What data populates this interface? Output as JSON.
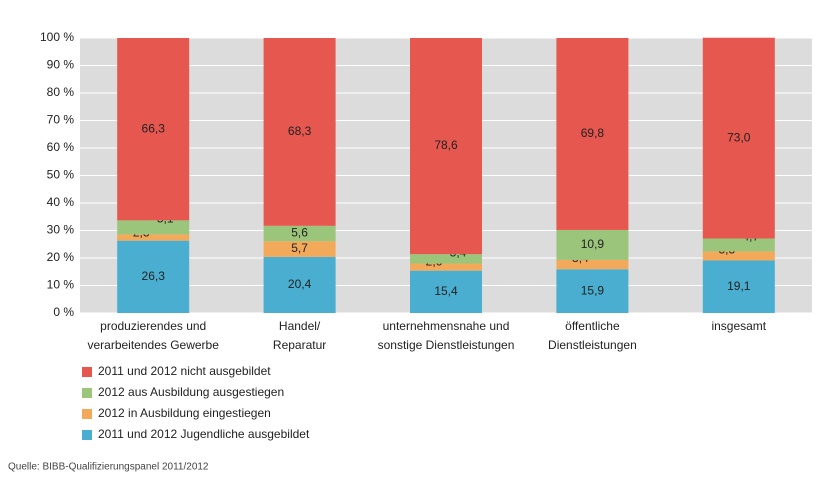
{
  "chart_data": {
    "type": "stacked_bar",
    "categories": [
      [
        "produzierendes und",
        "verarbeitendes Gewerbe"
      ],
      [
        "Handel/",
        "Reparatur"
      ],
      [
        "unternehmensnahe und",
        "sonstige Dienstleistungen"
      ],
      [
        "öffentliche",
        "Dienstleistungen"
      ],
      [
        "insgesamt"
      ]
    ],
    "series": [
      {
        "name": "2011 und 2012 nicht ausgebildet",
        "color": "#e5574f",
        "values": [
          66.3,
          68.3,
          78.6,
          69.8,
          73.0
        ],
        "value_labels": [
          "66,3",
          "68,3",
          "78,6",
          "69,8",
          "73,0"
        ]
      },
      {
        "name": "2012 aus Ausbildung ausgestiegen",
        "color": "#9bc57a",
        "values": [
          5.1,
          5.6,
          3.4,
          10.9,
          4.7
        ],
        "value_labels": [
          "5,1",
          "5,6",
          "3,4",
          "10,9",
          "4,7"
        ]
      },
      {
        "name": "2012 in Ausbildung eingestiegen",
        "color": "#f2a95a",
        "values": [
          2.3,
          5.7,
          2.6,
          3.4,
          3.3
        ],
        "value_labels": [
          "2,3",
          "5,7",
          "2,6",
          "3,4",
          "3,3"
        ]
      },
      {
        "name": "2011 und 2012 Jugendliche ausgebildet",
        "color": "#4aaed0",
        "values": [
          26.3,
          20.4,
          15.4,
          15.9,
          19.1
        ],
        "value_labels": [
          "26,3",
          "20,4",
          "15,4",
          "15,9",
          "19,1"
        ]
      }
    ],
    "ylim": [
      0,
      100
    ],
    "yticks": [
      {
        "value": 0,
        "label": "0 %"
      },
      {
        "value": 10,
        "label": "10 %"
      },
      {
        "value": 20,
        "label": "20 %"
      },
      {
        "value": 30,
        "label": "30 %"
      },
      {
        "value": 40,
        "label": "40 %"
      },
      {
        "value": 50,
        "label": "50 %"
      },
      {
        "value": 60,
        "label": "60 %"
      },
      {
        "value": 70,
        "label": "70 %"
      },
      {
        "value": 80,
        "label": "80 %"
      },
      {
        "value": 90,
        "label": "90 %"
      },
      {
        "value": 100,
        "label": "100 %"
      }
    ],
    "grid": true,
    "source": "Quelle: BIBB-Qualifizierungspanel 2011/2012"
  }
}
